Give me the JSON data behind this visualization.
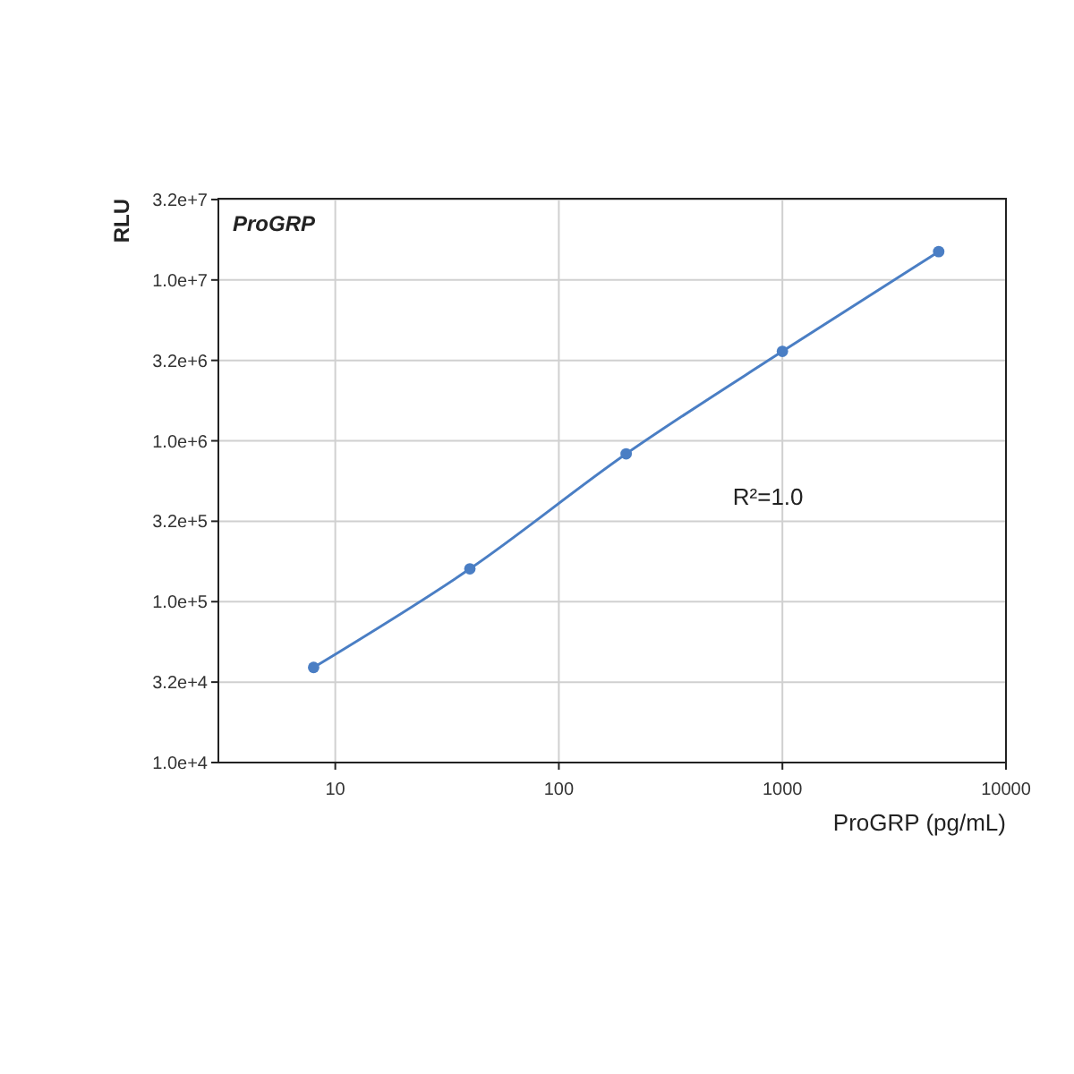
{
  "chart_data": {
    "type": "line",
    "xlabel": "ProGRP (pg/mL)",
    "ylabel": "RLU",
    "annotations": [
      "ProGRP",
      "R²=1.0"
    ],
    "x": [
      8,
      40,
      200,
      1000,
      5000
    ],
    "series": [
      {
        "color": "#4a7ec4",
        "values": [
          39000,
          160000,
          830000,
          3600000,
          15000000
        ]
      }
    ],
    "log": "xy",
    "xlim": [
      3,
      10000
    ],
    "ylim": [
      10000,
      32000000
    ],
    "xticks": [
      10,
      100,
      1000,
      10000
    ],
    "yticks": [
      {
        "value": 10000,
        "label": "1.0e+4"
      },
      {
        "value": 31623,
        "label": "3.2e+4"
      },
      {
        "value": 100000,
        "label": "1.0e+5"
      },
      {
        "value": 316228,
        "label": "3.2e+5"
      },
      {
        "value": 1000000,
        "label": "1.0e+6"
      },
      {
        "value": 3162278,
        "label": "3.2e+6"
      },
      {
        "value": 10000000,
        "label": "1.0e+7"
      },
      {
        "value": 31622777,
        "label": "3.2e+7"
      }
    ],
    "grid": true,
    "marker": "circle",
    "line_style": "solid"
  }
}
